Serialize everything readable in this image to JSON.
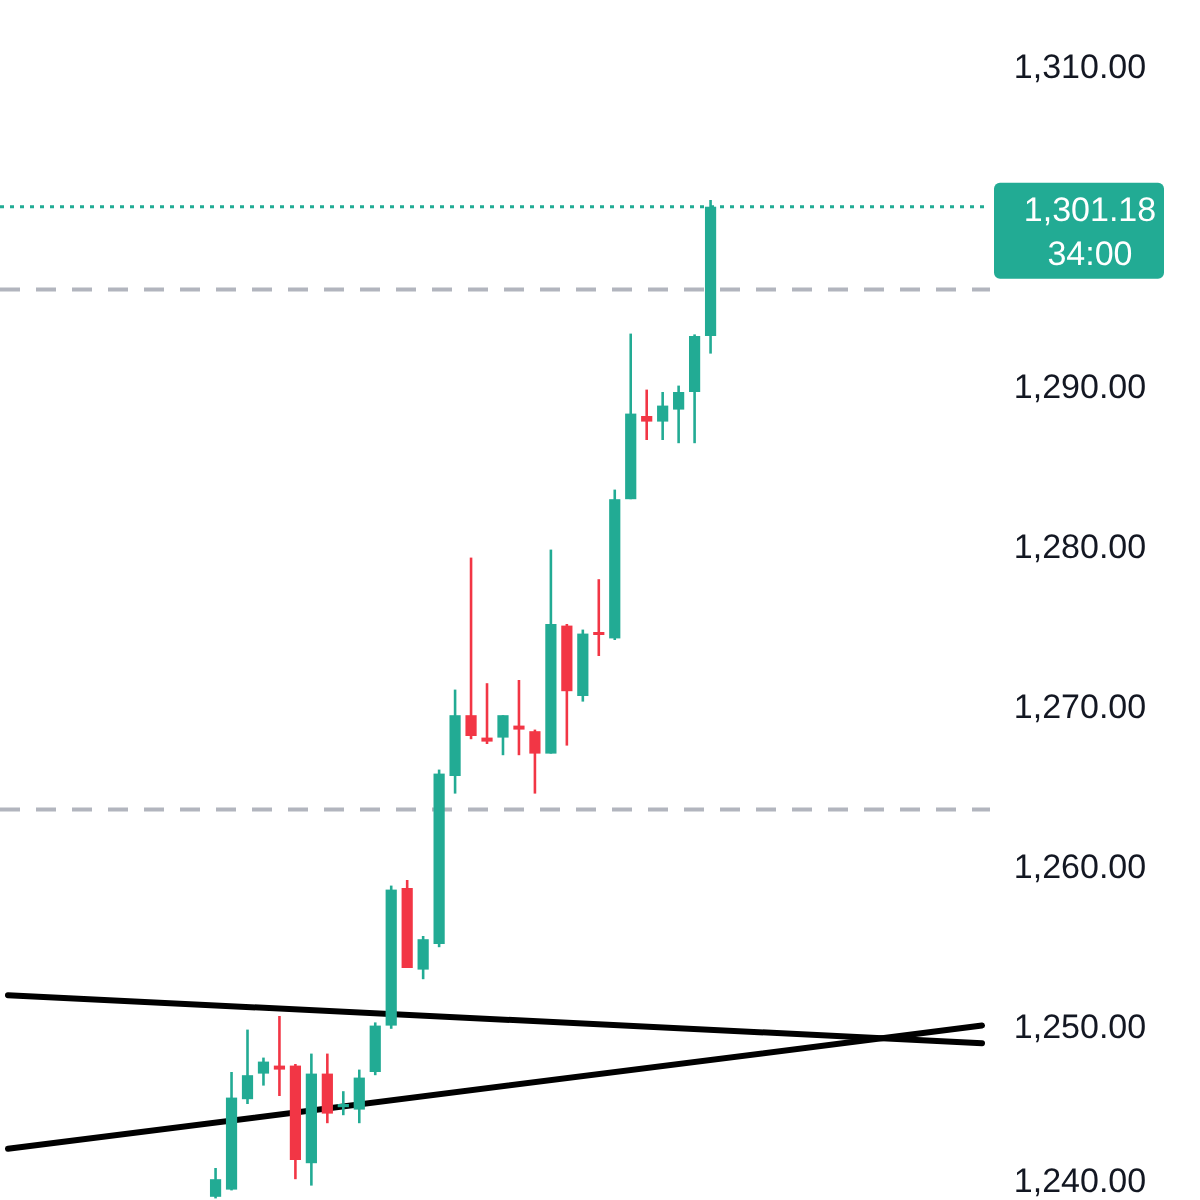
{
  "chart_data": {
    "type": "candlestick",
    "categories": [
      null,
      null,
      null,
      null,
      null,
      null,
      null,
      null,
      null,
      null,
      null,
      null,
      null,
      null,
      null,
      null,
      null,
      null,
      null,
      null,
      null,
      null,
      null,
      null,
      null,
      null,
      null,
      null,
      null,
      null,
      null,
      null,
      null,
      null,
      null,
      null,
      null,
      null,
      null,
      null,
      null,
      null,
      null,
      null,
      null,
      null,
      null,
      null,
      null,
      null,
      null,
      null,
      null,
      null,
      null,
      null,
      null,
      null,
      null,
      null,
      null,
      null
    ],
    "ohlc": [
      null,
      null,
      null,
      null,
      null,
      null,
      null,
      null,
      null,
      null,
      null,
      null,
      null,
      [
        1239.3,
        1241.1,
        1239.2,
        1240.4
      ],
      [
        1239.75,
        1247.1,
        1239.7,
        1245.5
      ],
      [
        1245.4,
        1249.75,
        1245.1,
        1246.9
      ],
      [
        1247.0,
        1248.0,
        1246.25,
        1247.75
      ],
      [
        1247.5,
        1250.6,
        1245.6,
        1247.25
      ],
      [
        1247.5,
        1247.6,
        1240.4,
        1241.6
      ],
      [
        1241.4,
        1248.25,
        1240.0,
        1247.0
      ],
      [
        1247.0,
        1248.25,
        1243.9,
        1244.5
      ],
      [
        1244.9,
        1245.9,
        1244.4,
        1245.1
      ],
      [
        1244.75,
        1247.25,
        1243.9,
        1246.75
      ],
      [
        1247.1,
        1250.2,
        1246.9,
        1250.0
      ],
      [
        1250.0,
        1258.75,
        1249.8,
        1258.5
      ],
      [
        1258.6,
        1259.1,
        1253.6,
        1253.6
      ],
      [
        1253.5,
        1255.6,
        1252.9,
        1255.4
      ],
      [
        1255.1,
        1266.0,
        1254.9,
        1265.75
      ],
      [
        1265.6,
        1271.0,
        1264.5,
        1269.4
      ],
      [
        1269.4,
        1279.25,
        1267.9,
        1268.1
      ],
      [
        1268.0,
        1271.4,
        1267.6,
        1267.75
      ],
      [
        1268.0,
        1269.4,
        1266.9,
        1269.4
      ],
      [
        1268.75,
        1271.6,
        1266.9,
        1268.5
      ],
      [
        1268.4,
        1268.5,
        1264.5,
        1267.0
      ],
      [
        1267.0,
        1279.75,
        1267.0,
        1275.1
      ],
      [
        1275.0,
        1275.1,
        1267.5,
        1270.9
      ],
      [
        1270.6,
        1274.75,
        1270.25,
        1274.5
      ],
      [
        1274.6,
        1277.9,
        1273.1,
        1274.5
      ],
      [
        1274.2,
        1283.5,
        1274.1,
        1282.9
      ],
      [
        1282.9,
        1293.25,
        1282.9,
        1288.25
      ],
      [
        1288.1,
        1289.75,
        1286.6,
        1287.75
      ],
      [
        1287.75,
        1289.6,
        1286.6,
        1288.75
      ],
      [
        1288.5,
        1290.0,
        1286.4,
        1289.6
      ],
      [
        1289.6,
        1293.2,
        1286.4,
        1293.1
      ],
      [
        1293.1,
        1301.6,
        1292.0,
        1301.18
      ],
      null,
      null,
      null,
      null,
      null,
      null,
      null,
      null,
      null,
      null,
      null,
      null,
      null,
      null,
      null,
      null,
      null
    ],
    "colors": [
      null,
      null,
      null,
      null,
      null,
      null,
      null,
      null,
      null,
      null,
      null,
      null,
      null,
      "#22ab94",
      "#22ab94",
      "#22ab94",
      "#22ab94",
      "#f23645",
      "#f23645",
      "#22ab94",
      "#f23645",
      "#22ab94",
      "#22ab94",
      "#22ab94",
      "#22ab94",
      "#f23645",
      "#22ab94",
      "#22ab94",
      "#22ab94",
      "#f23645",
      "#f23645",
      "#22ab94",
      "#f23645",
      "#f23645",
      "#22ab94",
      "#f23645",
      "#22ab94",
      "#f23645",
      "#22ab94",
      "#22ab94",
      "#f23645",
      "#22ab94",
      "#22ab94",
      "#22ab94",
      "#22ab94",
      null,
      null,
      null,
      null,
      null,
      null,
      null,
      null,
      null,
      null,
      null,
      null,
      null,
      null,
      null,
      null,
      null
    ],
    "series": [
      {
        "type": "line",
        "color": "#000000",
        "values": [
          1251.9,
          null,
          null,
          null,
          null,
          null,
          null,
          null,
          null,
          null,
          null,
          null,
          null,
          null,
          null,
          null,
          null,
          null,
          null,
          null,
          null,
          null,
          null,
          null,
          null,
          null,
          null,
          null,
          null,
          null,
          null,
          null,
          null,
          null,
          null,
          null,
          null,
          null,
          null,
          null,
          null,
          null,
          null,
          null,
          null,
          null,
          null,
          null,
          null,
          null,
          null,
          null,
          null,
          null,
          null,
          null,
          null,
          null,
          null,
          null,
          null,
          1248.9
        ]
      },
      {
        "type": "line",
        "color": "#000000",
        "values": [
          1242.3,
          null,
          null,
          null,
          null,
          null,
          null,
          null,
          null,
          null,
          null,
          null,
          null,
          null,
          null,
          null,
          null,
          null,
          null,
          null,
          null,
          null,
          null,
          null,
          null,
          null,
          null,
          null,
          null,
          null,
          null,
          null,
          null,
          null,
          null,
          null,
          null,
          null,
          null,
          null,
          null,
          null,
          null,
          null,
          null,
          null,
          null,
          null,
          null,
          null,
          null,
          null,
          null,
          null,
          null,
          null,
          null,
          null,
          null,
          null,
          null,
          1250.0
        ]
      }
    ],
    "ylim": [
      1239.1,
      1314.1
    ],
    "yticks": [
      {
        "value": 1240,
        "label": "1,240.00"
      },
      {
        "value": 1250,
        "label": "1,250.00"
      },
      {
        "value": 1260,
        "label": "1,260.00"
      },
      {
        "value": 1270,
        "label": "1,270.00"
      },
      {
        "value": 1280,
        "label": "1,280.00"
      },
      {
        "value": 1290,
        "label": "1,290.00"
      },
      {
        "value": 1310,
        "label": "1,310.00"
      }
    ],
    "tick_labels": "y",
    "grid": false,
    "ref_lines": [
      {
        "axis": "y",
        "value": 1301.18,
        "label": "1,301.18",
        "color": "#22ab94",
        "line_style": "dotted"
      },
      {
        "axis": "y",
        "value": 1296,
        "color": "#b2b5be",
        "line_style": "dashed"
      },
      {
        "axis": "y",
        "value": 1263.5,
        "color": "#b2b5be",
        "line_style": "dashed"
      }
    ],
    "annotations": [
      "34:00"
    ]
  }
}
